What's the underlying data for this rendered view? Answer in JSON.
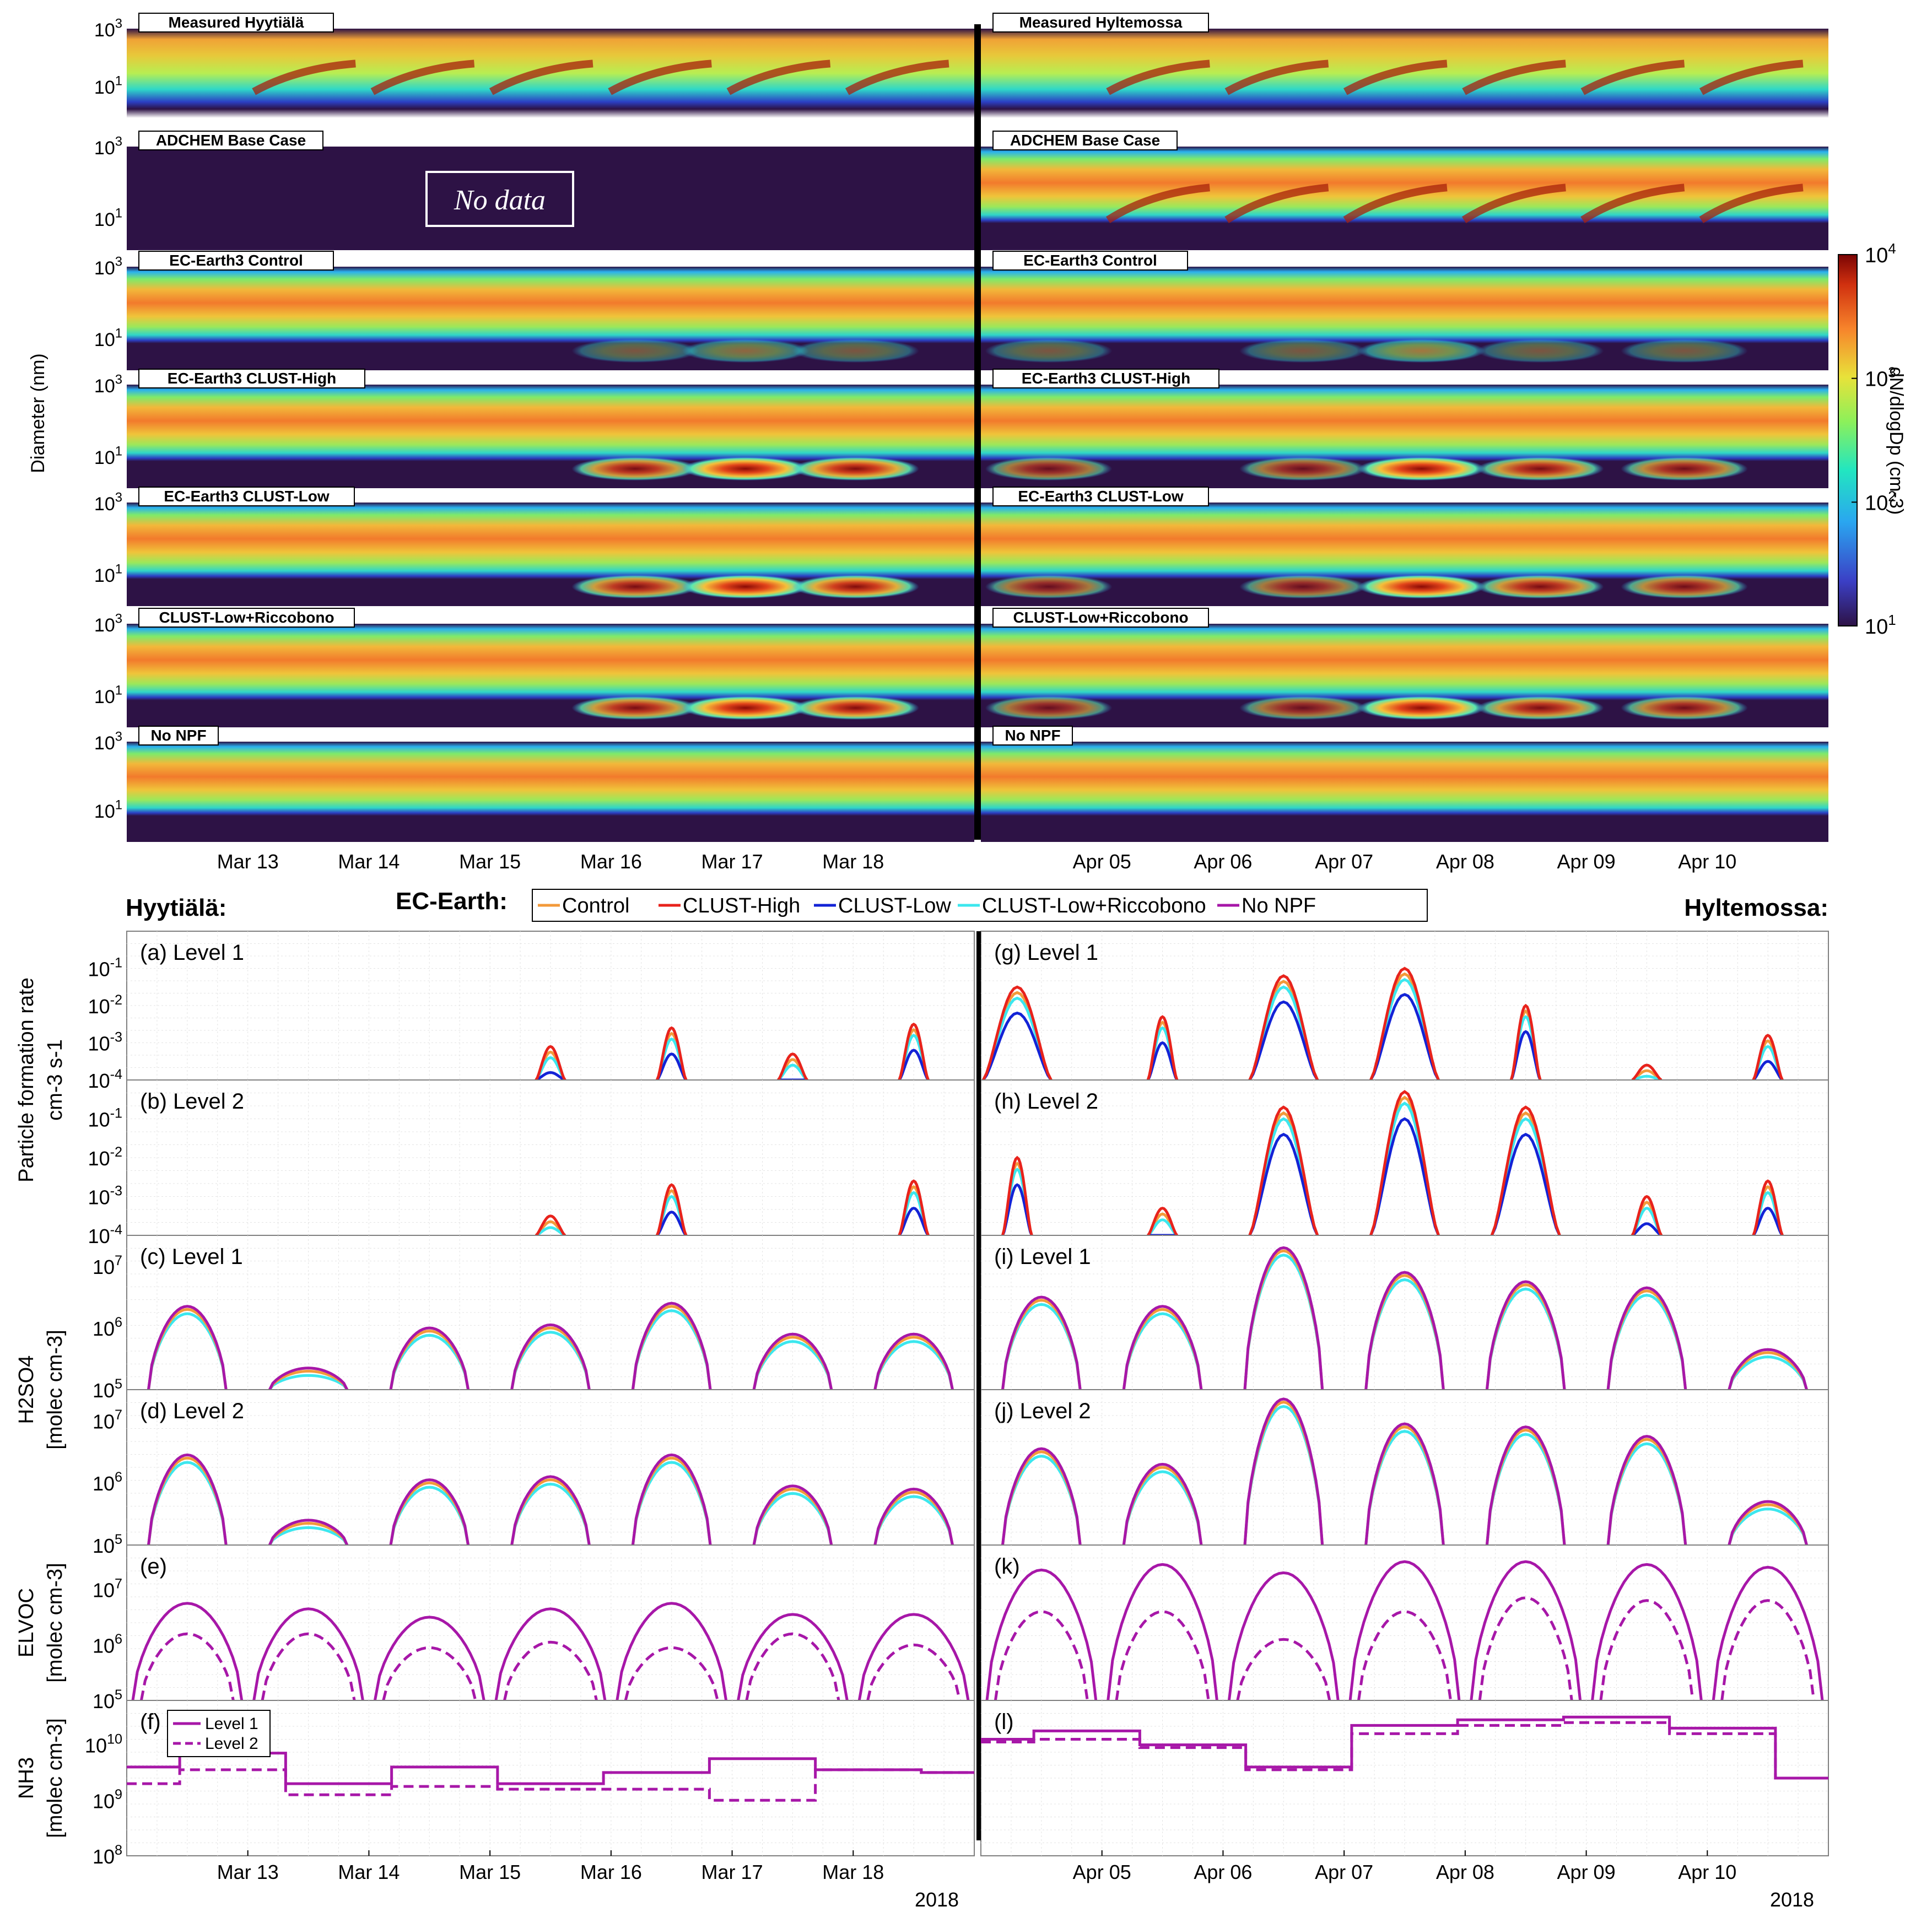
{
  "colorbar": {
    "label": "dN/dlogDp (cm-3)",
    "ticks": [
      "10",
      "10",
      "10",
      "10"
    ],
    "tick_exponents": [
      "4",
      "3",
      "2",
      "1"
    ]
  },
  "heatmaps": {
    "ylabel": "Diameter (nm)",
    "y_tick_exponents": [
      "3",
      "1"
    ],
    "left_title_banner": "No data",
    "left_panels": [
      "Measured Hyytiälä",
      "ADCHEM Base Case",
      "EC-Earth3 Control",
      "EC-Earth3 CLUST-High",
      "EC-Earth3 CLUST-Low",
      "CLUST-Low+Riccobono",
      "No NPF"
    ],
    "right_panels": [
      "Measured Hyltemossa",
      "ADCHEM Base Case",
      "EC-Earth3 Control",
      "EC-Earth3 CLUST-High",
      "EC-Earth3 CLUST-Low",
      "CLUST-Low+Riccobono",
      "No NPF"
    ]
  },
  "x_axes": {
    "left_dates": [
      "Mar 13",
      "Mar 14",
      "Mar 15",
      "Mar 16",
      "Mar 17",
      "Mar 18"
    ],
    "right_dates": [
      "Apr 05",
      "Apr 06",
      "Apr 07",
      "Apr 08",
      "Apr 09",
      "Apr 10"
    ],
    "year": "2018"
  },
  "legend": {
    "site_left": "Hyytiälä:",
    "site_right": "Hyltemossa:",
    "model": "EC-Earth:",
    "entries": [
      {
        "name": "Control",
        "color": "#f39a3a"
      },
      {
        "name": "CLUST-High",
        "color": "#e8231c"
      },
      {
        "name": "CLUST-Low",
        "color": "#1323d6"
      },
      {
        "name": "CLUST-Low+Riccobono",
        "color": "#3ce7ee"
      },
      {
        "name": "No NPF",
        "color": "#a717a8"
      }
    ],
    "level_legend": [
      "Level 1",
      "Level 2"
    ]
  },
  "line_panels": {
    "ylabels": {
      "formation_rate": [
        "Particle formation rate",
        "cm-3 s-1"
      ],
      "h2so4": [
        "H2SO4",
        "[molec cm-3]"
      ],
      "elvoc": [
        "ELVOC",
        "[molec cm-3]"
      ],
      "nh3": [
        "NH3",
        "[molec cm-3]"
      ]
    },
    "panel_labels_left": [
      "(a)  Level 1",
      "(b)  Level 2",
      "(c)  Level 1",
      "(d)  Level 2",
      "(e)",
      "(f)"
    ],
    "panel_labels_right": [
      "(g)  Level 1",
      "(h)  Level 2",
      "(i)  Level 1",
      "(j)  Level 2",
      "(k)",
      "(l)"
    ],
    "y_ticks": {
      "formation_rate_exp": [
        "-1",
        "-2",
        "-3",
        "-4"
      ],
      "h2so4_exp": [
        "7",
        "6",
        "5"
      ],
      "elvoc_exp": [
        "7",
        "6",
        "5"
      ],
      "nh3_exp": [
        "10",
        "9",
        "8"
      ]
    }
  },
  "chart_data": {
    "type": "line",
    "x_unit": "day index (left: Mar 12–18 2018, right: Apr 04–10 2018)",
    "formation_rate_peaks_log10": {
      "left_level1": {
        "CLUST-High": [
          -3.1,
          -2.6,
          -3.3,
          -2.5
        ],
        "peak_days": [
          15.5,
          16.5,
          17.5,
          18.5
        ]
      },
      "left_level2": {
        "CLUST-High": [
          -3.5,
          -2.7,
          -2.6
        ],
        "peak_days": [
          15.5,
          16.5,
          18.5
        ]
      },
      "right_level1": {
        "CLUST-High": [
          -1.5,
          -2.3,
          -1.2,
          -1.0,
          -2.0,
          -3.6,
          -2.8
        ],
        "peak_days": [
          4.3,
          5.5,
          6.5,
          7.5,
          8.5,
          9.5,
          10.5
        ]
      },
      "right_level2": {
        "CLUST-High": [
          -2.0,
          -3.3,
          -0.7,
          -0.3,
          -0.7,
          -3.0,
          -2.6
        ],
        "peak_days": [
          4.3,
          5.5,
          6.5,
          7.5,
          8.5,
          9.5,
          10.5
        ]
      }
    },
    "h2so4_peaks_log10": {
      "left_level1": [
        6.35,
        5.35,
        6.0,
        6.05,
        6.4,
        5.9,
        5.9
      ],
      "left_level2": [
        6.45,
        5.4,
        6.05,
        6.1,
        6.45,
        5.95,
        5.9
      ],
      "right_level1": [
        6.5,
        6.35,
        7.3,
        6.9,
        6.75,
        6.65,
        5.65
      ],
      "right_level2": [
        6.55,
        6.3,
        7.35,
        6.95,
        6.9,
        6.75,
        5.7
      ]
    },
    "elvoc_peaks_log10": {
      "left_level1": [
        6.75,
        6.65,
        6.5,
        6.65,
        6.75,
        6.55,
        6.55
      ],
      "left_level2": [
        6.2,
        6.2,
        5.95,
        6.05,
        5.95,
        6.2,
        6.0
      ],
      "right_level1": [
        7.35,
        7.45,
        7.3,
        7.5,
        7.5,
        7.45,
        7.4
      ],
      "right_level2": [
        6.6,
        6.6,
        6.1,
        6.6,
        6.85,
        6.8,
        6.8
      ]
    },
    "nh3_log10": {
      "left_level1": [
        9.6,
        9.85,
        9.3,
        9.6,
        9.3,
        9.5,
        9.75,
        9.55,
        9.5
      ],
      "left_level2": [
        9.3,
        9.55,
        9.1,
        9.25,
        9.2,
        9.2,
        9.0,
        9.55,
        9.5
      ],
      "right_level1": [
        10.1,
        10.25,
        10.0,
        9.6,
        10.35,
        10.45,
        10.5,
        10.3,
        9.4
      ],
      "right_level2": [
        10.05,
        10.1,
        9.95,
        9.55,
        10.2,
        10.35,
        10.4,
        10.2,
        9.4
      ]
    }
  }
}
